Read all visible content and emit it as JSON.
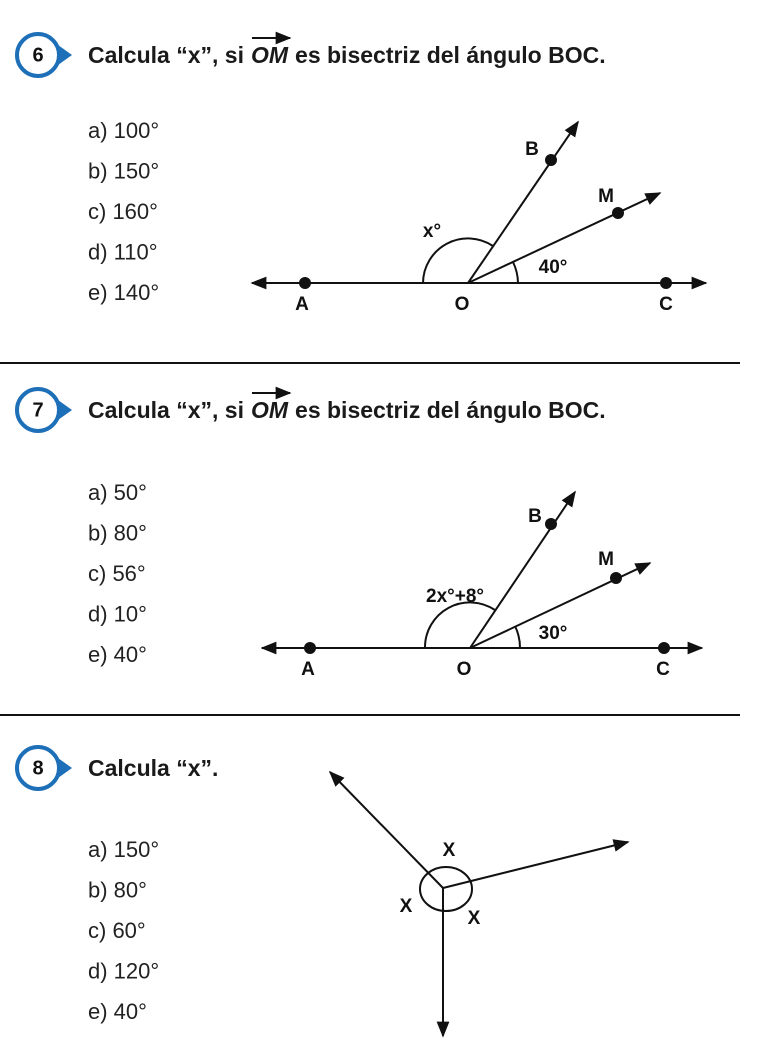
{
  "problems": [
    {
      "number": "6",
      "question": {
        "text": "Calcula “x”, si",
        "vector": "OM",
        "rest": "es bisectriz del ángulo BOC."
      },
      "options": [
        "a) 100°",
        "b) 150°",
        "c) 160°",
        "d) 110°",
        "e) 140°"
      ],
      "figure": {
        "B": "B",
        "M": "M",
        "angle_x": "x°",
        "angle_given": "40°",
        "A": "A",
        "O": "O",
        "C": "C"
      }
    },
    {
      "number": "7",
      "question": {
        "text": "Calcula “x”, si",
        "vector": "OM",
        "rest": "es bisectriz del ángulo BOC."
      },
      "options": [
        "a) 50°",
        "b) 80°",
        "c) 56°",
        "d) 10°",
        "e) 40°"
      ],
      "figure": {
        "B": "B",
        "M": "M",
        "angle_x": "2x°+8°",
        "angle_given": "30°",
        "A": "A",
        "O": "O",
        "C": "C"
      }
    },
    {
      "number": "8",
      "question": {
        "text": "Calcula “x”."
      },
      "options": [
        "a) 150°",
        "b) 80°",
        "c) 60°",
        "d) 120°",
        "e) 40°"
      ],
      "figure": {
        "x1": "X",
        "x2": "X",
        "x3": "X"
      }
    }
  ]
}
